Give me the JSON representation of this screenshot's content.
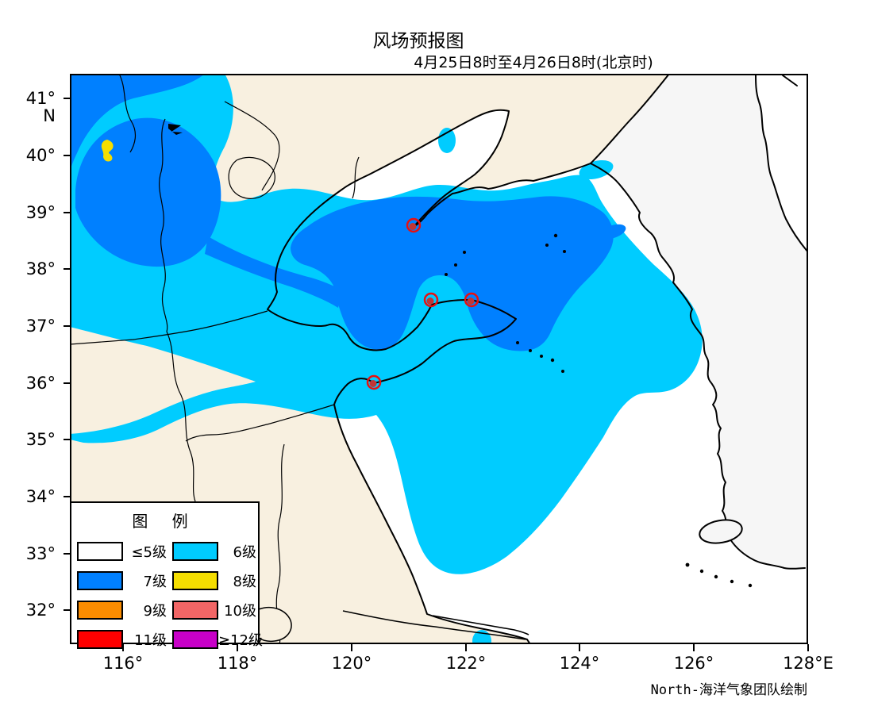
{
  "title": "风场预报图",
  "subtitle": "4月25日8时至4月26日8时(北京时)",
  "attribution": "North-海洋气象团队绘制",
  "axes": {
    "y_unit": "N",
    "y_ticks": [
      "41°",
      "40°",
      "39°",
      "38°",
      "37°",
      "36°",
      "35°",
      "34°",
      "33°",
      "32°"
    ],
    "x_ticks": [
      "116°",
      "118°",
      "120°",
      "122°",
      "124°",
      "126°",
      "128°E"
    ]
  },
  "legend": {
    "title": "图 例",
    "items": [
      {
        "label": "≤5级",
        "color": "#FFFFFF"
      },
      {
        "label": "6级",
        "color": "#00CCFF"
      },
      {
        "label": "7级",
        "color": "#0080FF"
      },
      {
        "label": "8级",
        "color": "#F5DE00"
      },
      {
        "label": "9级",
        "color": "#FB8C00"
      },
      {
        "label": "10级",
        "color": "#F26666"
      },
      {
        "label": "11级",
        "color": "#FF0000"
      },
      {
        "label": "≥12级",
        "color": "#C800C8"
      }
    ]
  },
  "map": {
    "fill_colors": {
      "china_land": "#F8F0E0",
      "korea_land": "#F6F6F6",
      "sea": "#FFFFFF",
      "wind6": "#00CCFF",
      "wind7": "#0080FF",
      "wind8": "#F5DE00"
    },
    "station_markers": [
      {
        "x": 521,
        "y": 284
      },
      {
        "x": 543,
        "y": 378
      },
      {
        "x": 594,
        "y": 378
      },
      {
        "x": 471,
        "y": 482
      }
    ],
    "marker_ring_color": "#E81010",
    "marker_fill_color": "#C23535"
  }
}
